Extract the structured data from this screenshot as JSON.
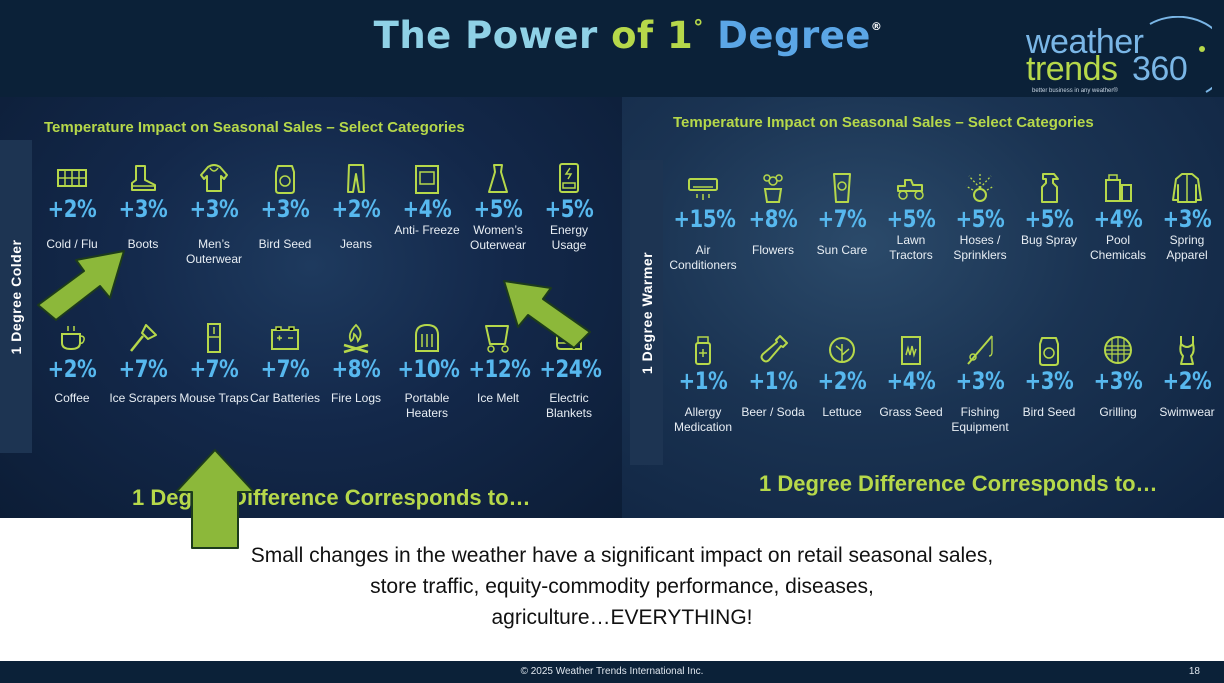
{
  "header": {
    "title_part1": "The Power",
    "title_part2": "of 1",
    "title_degree": "°",
    "title_part3": "Degree",
    "title_reg": "®"
  },
  "logo": {
    "word1": "weather",
    "word2": "trends",
    "word3": "360",
    "tagline": "better business in any weather®"
  },
  "left_panel": {
    "heading": "Temperature Impact on Seasonal Sales – Select Categories",
    "side_label": "1 Degree Colder",
    "difference_text": "1 Degree Difference Corresponds to…",
    "items": [
      {
        "value": "+2%",
        "label": "Cold / Flu",
        "icon": "cold-flu-icon"
      },
      {
        "value": "+3%",
        "label": "Boots",
        "icon": "boot-icon"
      },
      {
        "value": "+3%",
        "label": "Men’s Outerwear",
        "icon": "hoodie-icon"
      },
      {
        "value": "+3%",
        "label": "Bird Seed",
        "icon": "bird-seed-bag-icon"
      },
      {
        "value": "+2%",
        "label": "Jeans",
        "icon": "jeans-icon"
      },
      {
        "value": "+4%",
        "label": "Anti- Freeze",
        "icon": "antifreeze-icon"
      },
      {
        "value": "+5%",
        "label": "Women’s Outerwear",
        "icon": "dress-icon"
      },
      {
        "value": "+5%",
        "label": "Energy Usage",
        "icon": "energy-meter-icon"
      },
      {
        "value": "+2%",
        "label": "Coffee",
        "icon": "coffee-cup-icon"
      },
      {
        "value": "+7%",
        "label": "Ice Scrapers",
        "icon": "ice-scraper-icon"
      },
      {
        "value": "+7%",
        "label": "Mouse Traps",
        "icon": "mouse-trap-icon"
      },
      {
        "value": "+7%",
        "label": "Car Batteries",
        "icon": "car-battery-icon"
      },
      {
        "value": "+8%",
        "label": "Fire Logs",
        "icon": "campfire-icon"
      },
      {
        "value": "+10%",
        "label": "Portable Heaters",
        "icon": "heater-icon"
      },
      {
        "value": "+12%",
        "label": "Ice Melt",
        "icon": "ice-melt-icon"
      },
      {
        "value": "+24%",
        "label": "Electric Blankets",
        "icon": "blanket-icon"
      }
    ]
  },
  "right_panel": {
    "heading": "Temperature Impact on Seasonal Sales – Select Categories",
    "side_label": "1 Degree Warmer",
    "difference_text": "1 Degree Difference Corresponds to…",
    "items": [
      {
        "value": "+15%",
        "label": "Air Conditioners",
        "icon": "air-conditioner-icon"
      },
      {
        "value": "+8%",
        "label": "Flowers",
        "icon": "flower-pot-icon"
      },
      {
        "value": "+7%",
        "label": "Sun Care",
        "icon": "sunscreen-icon"
      },
      {
        "value": "+5%",
        "label": "Lawn Tractors",
        "icon": "lawn-tractor-icon"
      },
      {
        "value": "+5%",
        "label": "Hoses / Sprinklers",
        "icon": "sprinkler-icon"
      },
      {
        "value": "+5%",
        "label": "Bug Spray",
        "icon": "spray-bottle-icon"
      },
      {
        "value": "+4%",
        "label": "Pool Chemicals",
        "icon": "chemicals-icon"
      },
      {
        "value": "+3%",
        "label": "Spring Apparel",
        "icon": "coat-icon"
      },
      {
        "value": "+1%",
        "label": "Allergy Medication",
        "icon": "medicine-bottle-icon"
      },
      {
        "value": "+1%",
        "label": "Beer / Soda",
        "icon": "bottle-icon"
      },
      {
        "value": "+2%",
        "label": "Lettuce",
        "icon": "lettuce-icon"
      },
      {
        "value": "+4%",
        "label": "Grass Seed",
        "icon": "grass-seed-icon"
      },
      {
        "value": "+3%",
        "label": "Fishing Equipment",
        "icon": "fishing-rod-icon"
      },
      {
        "value": "+3%",
        "label": "Bird Seed",
        "icon": "bird-seed-bag-icon"
      },
      {
        "value": "+3%",
        "label": "Grilling",
        "icon": "grill-icon"
      },
      {
        "value": "+2%",
        "label": "Swimwear",
        "icon": "swimsuit-icon"
      }
    ]
  },
  "caption": {
    "line1": "Small changes in the weather have a significant impact on retail seasonal sales,",
    "line2": "store traffic, equity-commodity performance, diseases,",
    "line3": "agriculture…EVERYTHING!"
  },
  "footer": {
    "copyright": "© 2025 Weather Trends International Inc.",
    "page_number": "18"
  },
  "colors": {
    "navy": "#0b2138",
    "accent_green": "#b6d84a",
    "value_blue": "#57b8ee",
    "arrow_green": "#8cb83a"
  }
}
